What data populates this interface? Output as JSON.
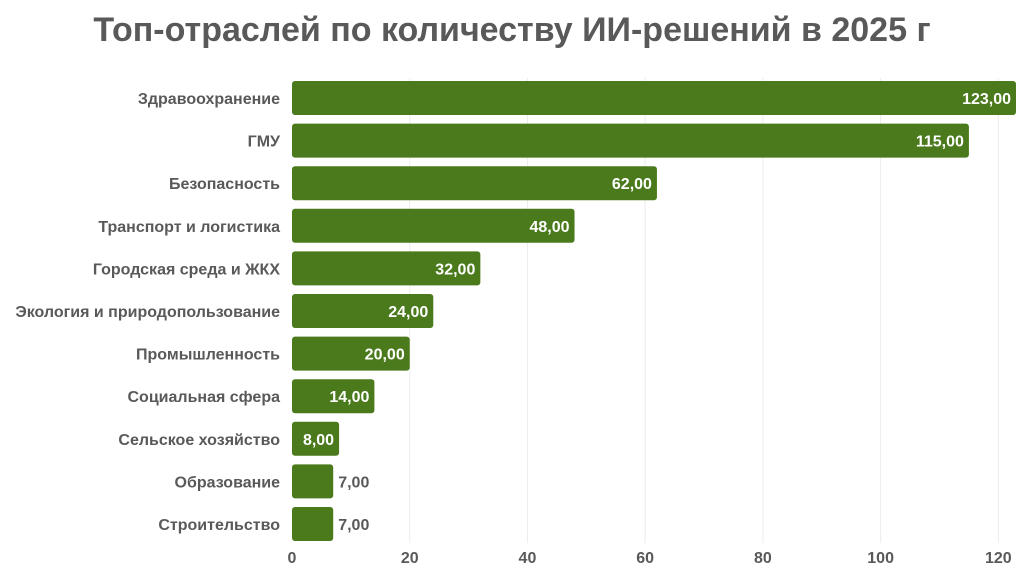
{
  "chart_data": {
    "type": "bar",
    "orientation": "horizontal",
    "title": "Топ-отраслей по количеству ИИ-решений в 2025 г",
    "categories": [
      "Здравоохранение",
      "ГМУ",
      "Безопасность",
      "Транспорт и логистика",
      "Городская среда и ЖКХ",
      "Экология и природопользование",
      "Промышленность",
      "Социальная сфера",
      "Сельское хозяйство",
      "Образование",
      "Строительство"
    ],
    "values": [
      123,
      115,
      62,
      48,
      32,
      24,
      20,
      14,
      8,
      7,
      7
    ],
    "value_labels": [
      "123,00",
      "115,00",
      "62,00",
      "48,00",
      "32,00",
      "24,00",
      "20,00",
      "14,00",
      "8,00",
      "7,00",
      "7,00"
    ],
    "xlim": [
      0,
      123
    ],
    "x_ticks": [
      "0",
      "20",
      "40",
      "60",
      "80",
      "100",
      "120"
    ],
    "x_tick_values": [
      0,
      20,
      40,
      60,
      80,
      100,
      120
    ],
    "grid": true,
    "colors": {
      "bar": "#4a7a1b",
      "text": "#595959",
      "grid": "#ececec"
    }
  }
}
